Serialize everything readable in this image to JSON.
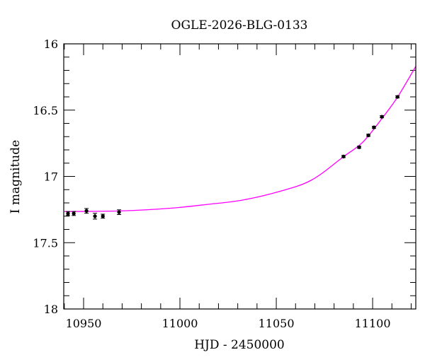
{
  "chart_data": {
    "type": "scatter",
    "title": "OGLE-2026-BLG-0133",
    "xlabel": "HJD - 2450000",
    "ylabel": "I magnitude",
    "xlim": [
      10939.7,
      11122.4
    ],
    "ylim": [
      16,
      18
    ],
    "y_inverted": true,
    "x_ticks": [
      10950,
      11000,
      11050,
      11100
    ],
    "x_tick_labels": [
      "10950",
      "11000",
      "11050",
      "11100"
    ],
    "x_minor_step": 10,
    "y_ticks": [
      16,
      16.5,
      17,
      17.5,
      18
    ],
    "y_tick_labels": [
      "16",
      "16.5",
      "17",
      "17.5",
      "18"
    ],
    "y_minor_step": 0.1,
    "grid": false,
    "colors": {
      "points": "#000000",
      "model": "#ff00ff"
    },
    "series": [
      {
        "kind": "points",
        "x": [
          10941.9,
          10944.9,
          10951.5,
          10955.9,
          10960.0,
          10968.4,
          11084.9,
          11093.0,
          11097.8,
          11100.7,
          11104.8,
          11112.9
        ],
        "y": [
          17.28,
          17.28,
          17.26,
          17.3,
          17.3,
          17.27,
          16.85,
          16.78,
          16.69,
          16.63,
          16.55,
          16.4
        ],
        "yerr": [
          0.015,
          0.015,
          0.018,
          0.022,
          0.015,
          0.018,
          0.008,
          0.008,
          0.008,
          0.008,
          0.008,
          0.008
        ]
      },
      {
        "kind": "model-line",
        "x": [
          10940,
          10970,
          10995,
          11015,
          11032,
          11050,
          11068,
          11085,
          11095,
          11105,
          11113,
          11122.4
        ],
        "y": [
          17.265,
          17.26,
          17.24,
          17.21,
          17.18,
          17.12,
          17.03,
          16.85,
          16.74,
          16.56,
          16.4,
          16.17
        ]
      }
    ]
  }
}
